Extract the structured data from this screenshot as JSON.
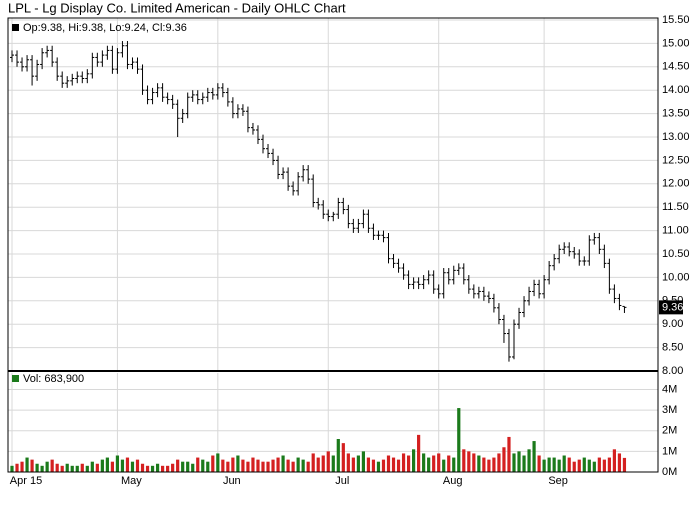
{
  "chart_data": {
    "type": "ohlc",
    "title": "LPL - Lg Display Co. Limited American - Daily OHLC Chart",
    "ohlc_legend": "Op:9.38, Hi:9.38, Lo:9.24, Cl:9.36",
    "volume_legend": "Vol: 683,900",
    "categories": [
      "Apr 15",
      null,
      null,
      null,
      null,
      null,
      null,
      null,
      null,
      null,
      null,
      null,
      null,
      null,
      null,
      null,
      null,
      null,
      null,
      null,
      null,
      "May",
      null,
      null,
      null,
      null,
      null,
      null,
      null,
      null,
      null,
      null,
      null,
      null,
      null,
      null,
      null,
      null,
      null,
      null,
      null,
      "Jun",
      null,
      null,
      null,
      null,
      null,
      null,
      null,
      null,
      null,
      null,
      null,
      null,
      null,
      null,
      null,
      null,
      null,
      null,
      null,
      null,
      null,
      "Jul",
      null,
      null,
      null,
      null,
      null,
      null,
      null,
      null,
      null,
      null,
      null,
      null,
      null,
      null,
      null,
      null,
      null,
      null,
      null,
      null,
      null,
      "Aug",
      null,
      null,
      null,
      null,
      null,
      null,
      null,
      null,
      null,
      null,
      null,
      null,
      null,
      null,
      null,
      null,
      null,
      null,
      null,
      null,
      "Sep",
      null,
      null,
      null,
      null,
      null,
      null,
      null,
      null,
      null,
      null,
      null,
      null,
      null,
      null,
      null,
      null
    ],
    "open": [
      14.7,
      14.75,
      14.6,
      14.5,
      14.65,
      14.3,
      14.55,
      14.8,
      14.85,
      14.6,
      14.3,
      14.15,
      14.2,
      14.25,
      14.3,
      14.25,
      14.35,
      14.7,
      14.6,
      14.75,
      14.85,
      14.45,
      14.8,
      14.95,
      14.55,
      14.6,
      14.45,
      14.0,
      13.8,
      13.95,
      14.05,
      13.85,
      13.8,
      13.7,
      13.4,
      13.5,
      13.85,
      13.9,
      13.8,
      13.85,
      13.95,
      13.9,
      14.05,
      13.95,
      13.75,
      13.5,
      13.6,
      13.55,
      13.2,
      13.15,
      12.95,
      12.75,
      12.65,
      12.5,
      12.2,
      12.25,
      11.95,
      11.85,
      12.15,
      12.3,
      12.1,
      11.6,
      11.55,
      11.35,
      11.3,
      11.35,
      11.6,
      11.45,
      11.15,
      11.05,
      11.15,
      11.35,
      11.05,
      10.9,
      10.9,
      10.85,
      10.4,
      10.3,
      10.2,
      10.05,
      9.85,
      9.9,
      9.85,
      9.95,
      10.05,
      9.75,
      9.65,
      10.1,
      9.95,
      10.15,
      10.2,
      9.95,
      9.75,
      9.65,
      9.7,
      9.6,
      9.55,
      9.35,
      9.1,
      8.8,
      8.3,
      9.0,
      9.25,
      9.5,
      9.7,
      9.85,
      9.65,
      9.95,
      10.25,
      10.4,
      10.6,
      10.65,
      10.55,
      10.5,
      10.35,
      10.35,
      10.8,
      10.85,
      10.6,
      10.3,
      9.75,
      9.55,
      9.38
    ],
    "high": [
      14.85,
      14.85,
      14.7,
      14.75,
      14.75,
      14.65,
      14.9,
      14.95,
      14.95,
      14.7,
      14.4,
      14.3,
      14.35,
      14.4,
      14.4,
      14.45,
      14.8,
      14.8,
      14.85,
      14.95,
      14.95,
      14.9,
      15.05,
      15.05,
      14.7,
      14.7,
      14.55,
      14.1,
      14.05,
      14.15,
      14.15,
      13.95,
      13.9,
      13.8,
      13.6,
      13.95,
      14.0,
      14.0,
      13.95,
      14.05,
      14.05,
      14.15,
      14.15,
      14.05,
      13.85,
      13.7,
      13.7,
      13.65,
      13.3,
      13.25,
      13.05,
      12.85,
      12.75,
      12.6,
      12.35,
      12.35,
      12.05,
      12.25,
      12.4,
      12.4,
      12.2,
      11.7,
      11.65,
      11.45,
      11.4,
      11.7,
      11.7,
      11.55,
      11.25,
      11.25,
      11.45,
      11.45,
      11.15,
      11.0,
      11.0,
      10.95,
      10.5,
      10.4,
      10.3,
      10.15,
      10.0,
      10.0,
      10.05,
      10.15,
      10.15,
      9.85,
      10.2,
      10.2,
      10.25,
      10.3,
      10.3,
      10.05,
      9.85,
      9.8,
      9.8,
      9.7,
      9.65,
      9.45,
      9.2,
      8.9,
      9.1,
      9.35,
      9.6,
      9.8,
      9.95,
      9.95,
      10.05,
      10.35,
      10.5,
      10.7,
      10.75,
      10.75,
      10.65,
      10.6,
      10.45,
      10.9,
      10.95,
      10.95,
      10.7,
      10.4,
      9.85,
      9.65,
      9.38
    ],
    "low": [
      14.6,
      14.5,
      14.4,
      14.4,
      14.1,
      14.2,
      14.45,
      14.7,
      14.5,
      14.2,
      14.05,
      14.05,
      14.1,
      14.15,
      14.15,
      14.15,
      14.25,
      14.5,
      14.5,
      14.65,
      14.35,
      14.35,
      14.7,
      14.45,
      14.45,
      14.35,
      13.9,
      13.7,
      13.7,
      13.85,
      13.75,
      13.7,
      13.6,
      13.0,
      13.3,
      13.4,
      13.75,
      13.7,
      13.7,
      13.75,
      13.8,
      13.8,
      13.85,
      13.65,
      13.4,
      13.4,
      13.45,
      13.1,
      13.05,
      12.85,
      12.65,
      12.55,
      12.4,
      12.1,
      12.1,
      11.85,
      11.75,
      11.75,
      12.05,
      12.0,
      11.5,
      11.45,
      11.25,
      11.2,
      11.2,
      11.25,
      11.35,
      11.05,
      10.95,
      10.95,
      11.05,
      10.95,
      10.8,
      10.8,
      10.75,
      10.3,
      10.2,
      10.1,
      9.95,
      9.75,
      9.75,
      9.75,
      9.75,
      9.85,
      9.65,
      9.55,
      9.55,
      9.85,
      9.85,
      10.05,
      9.85,
      9.65,
      9.55,
      9.55,
      9.5,
      9.45,
      9.25,
      9.0,
      8.6,
      8.2,
      8.25,
      8.9,
      9.15,
      9.4,
      9.6,
      9.55,
      9.55,
      9.85,
      10.15,
      10.3,
      10.5,
      10.45,
      10.4,
      10.25,
      10.25,
      10.25,
      10.7,
      10.5,
      10.2,
      9.65,
      9.45,
      9.3,
      9.24
    ],
    "close": [
      14.75,
      14.6,
      14.5,
      14.65,
      14.3,
      14.55,
      14.8,
      14.85,
      14.6,
      14.3,
      14.15,
      14.2,
      14.25,
      14.3,
      14.25,
      14.35,
      14.7,
      14.6,
      14.75,
      14.85,
      14.45,
      14.8,
      14.95,
      14.55,
      14.6,
      14.45,
      14.0,
      13.8,
      13.95,
      14.05,
      13.85,
      13.8,
      13.7,
      13.4,
      13.5,
      13.85,
      13.9,
      13.8,
      13.85,
      13.95,
      13.9,
      14.05,
      13.95,
      13.75,
      13.5,
      13.6,
      13.55,
      13.2,
      13.15,
      12.95,
      12.75,
      12.65,
      12.5,
      12.2,
      12.25,
      11.95,
      11.85,
      12.15,
      12.3,
      12.1,
      11.6,
      11.55,
      11.35,
      11.3,
      11.35,
      11.6,
      11.45,
      11.15,
      11.05,
      11.15,
      11.35,
      11.05,
      10.9,
      10.9,
      10.85,
      10.4,
      10.3,
      10.2,
      10.05,
      9.85,
      9.9,
      9.85,
      9.95,
      10.05,
      9.75,
      9.65,
      10.1,
      9.95,
      10.15,
      10.2,
      9.95,
      9.75,
      9.65,
      9.7,
      9.6,
      9.55,
      9.35,
      9.1,
      8.8,
      8.3,
      9.0,
      9.25,
      9.5,
      9.7,
      9.85,
      9.65,
      9.95,
      10.25,
      10.4,
      10.6,
      10.65,
      10.55,
      10.5,
      10.35,
      10.35,
      10.8,
      10.85,
      10.6,
      10.3,
      9.75,
      9.55,
      9.4,
      9.36
    ],
    "volume": [
      0.3,
      0.4,
      0.5,
      0.7,
      0.6,
      0.4,
      0.3,
      0.5,
      0.6,
      0.4,
      0.3,
      0.4,
      0.3,
      0.3,
      0.4,
      0.3,
      0.5,
      0.4,
      0.6,
      0.7,
      0.5,
      0.8,
      0.6,
      0.7,
      0.5,
      0.6,
      0.4,
      0.3,
      0.3,
      0.4,
      0.3,
      0.3,
      0.4,
      0.6,
      0.5,
      0.5,
      0.4,
      0.7,
      0.6,
      0.5,
      0.8,
      0.9,
      0.6,
      0.5,
      0.7,
      0.8,
      0.6,
      0.5,
      0.7,
      0.6,
      0.5,
      0.5,
      0.6,
      0.7,
      0.8,
      0.6,
      0.5,
      0.7,
      0.6,
      0.5,
      0.9,
      0.7,
      0.8,
      1.0,
      0.8,
      1.6,
      1.4,
      0.9,
      0.7,
      0.8,
      1.0,
      0.7,
      0.6,
      0.5,
      0.6,
      0.8,
      0.7,
      0.6,
      0.9,
      0.8,
      1.1,
      1.8,
      0.9,
      0.7,
      0.8,
      0.9,
      0.6,
      0.8,
      0.7,
      3.1,
      1.1,
      1.0,
      0.9,
      0.8,
      0.7,
      0.6,
      0.7,
      0.9,
      1.2,
      1.7,
      0.9,
      1.0,
      0.8,
      1.1,
      1.5,
      0.8,
      0.6,
      0.7,
      0.7,
      0.6,
      0.8,
      0.7,
      0.5,
      0.6,
      0.7,
      0.6,
      0.5,
      0.7,
      0.6,
      0.7,
      1.1,
      0.9,
      0.6839
    ],
    "bar_color": "#000000",
    "up_color": "#1b7a1b",
    "down_color": "#d42020",
    "ylim": [
      8,
      15.5
    ],
    "yticks": [
      {
        "value": 8,
        "label": "8.00"
      },
      {
        "value": 8.5,
        "label": "8.50"
      },
      {
        "value": 9,
        "label": "9.00"
      },
      {
        "value": 9.5,
        "label": "9.50"
      },
      {
        "value": 10,
        "label": "10.00"
      },
      {
        "value": 10.5,
        "label": "10.50"
      },
      {
        "value": 11,
        "label": "11.00"
      },
      {
        "value": 11.5,
        "label": "11.50"
      },
      {
        "value": 12,
        "label": "12.00"
      },
      {
        "value": 12.5,
        "label": "12.50"
      },
      {
        "value": 13,
        "label": "13.00"
      },
      {
        "value": 13.5,
        "label": "13.50"
      },
      {
        "value": 14,
        "label": "14.00"
      },
      {
        "value": 14.5,
        "label": "14.50"
      },
      {
        "value": 15,
        "label": "15.00"
      },
      {
        "value": 15.5,
        "label": "15.50"
      }
    ],
    "volume_ylim": [
      0,
      4.8
    ],
    "volume_yticks": [
      {
        "value": 0,
        "label": "0M"
      },
      {
        "value": 1,
        "label": "1M"
      },
      {
        "value": 2,
        "label": "2M"
      },
      {
        "value": 3,
        "label": "3M"
      },
      {
        "value": 4,
        "label": "4M"
      }
    ],
    "grid": true
  }
}
